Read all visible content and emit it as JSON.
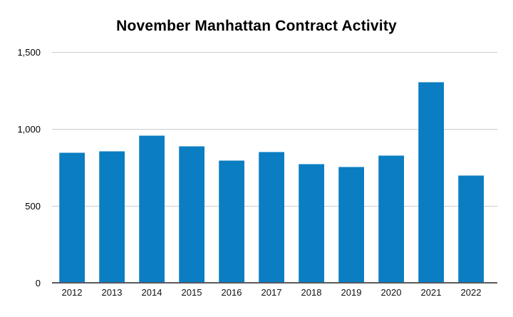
{
  "colors": {
    "bar": "#0b7dc2",
    "gridline": "#cccccc",
    "axis_line": "#58595b",
    "title_text": "#000000",
    "label_text": "#111111"
  },
  "chart_data": {
    "type": "bar",
    "title": "November Manhattan Contract Activity",
    "categories": [
      "2012",
      "2013",
      "2014",
      "2015",
      "2016",
      "2017",
      "2018",
      "2019",
      "2020",
      "2021",
      "2022"
    ],
    "values": [
      850,
      860,
      965,
      895,
      800,
      855,
      780,
      760,
      835,
      1310,
      705
    ],
    "xlabel": "",
    "ylabel": "",
    "ylim": [
      0,
      1500
    ],
    "yticks": [
      0,
      500,
      1000,
      1500
    ],
    "ytick_labels": [
      "0",
      "500",
      "1,000",
      "1,500"
    ],
    "grid": true,
    "legend": false
  }
}
